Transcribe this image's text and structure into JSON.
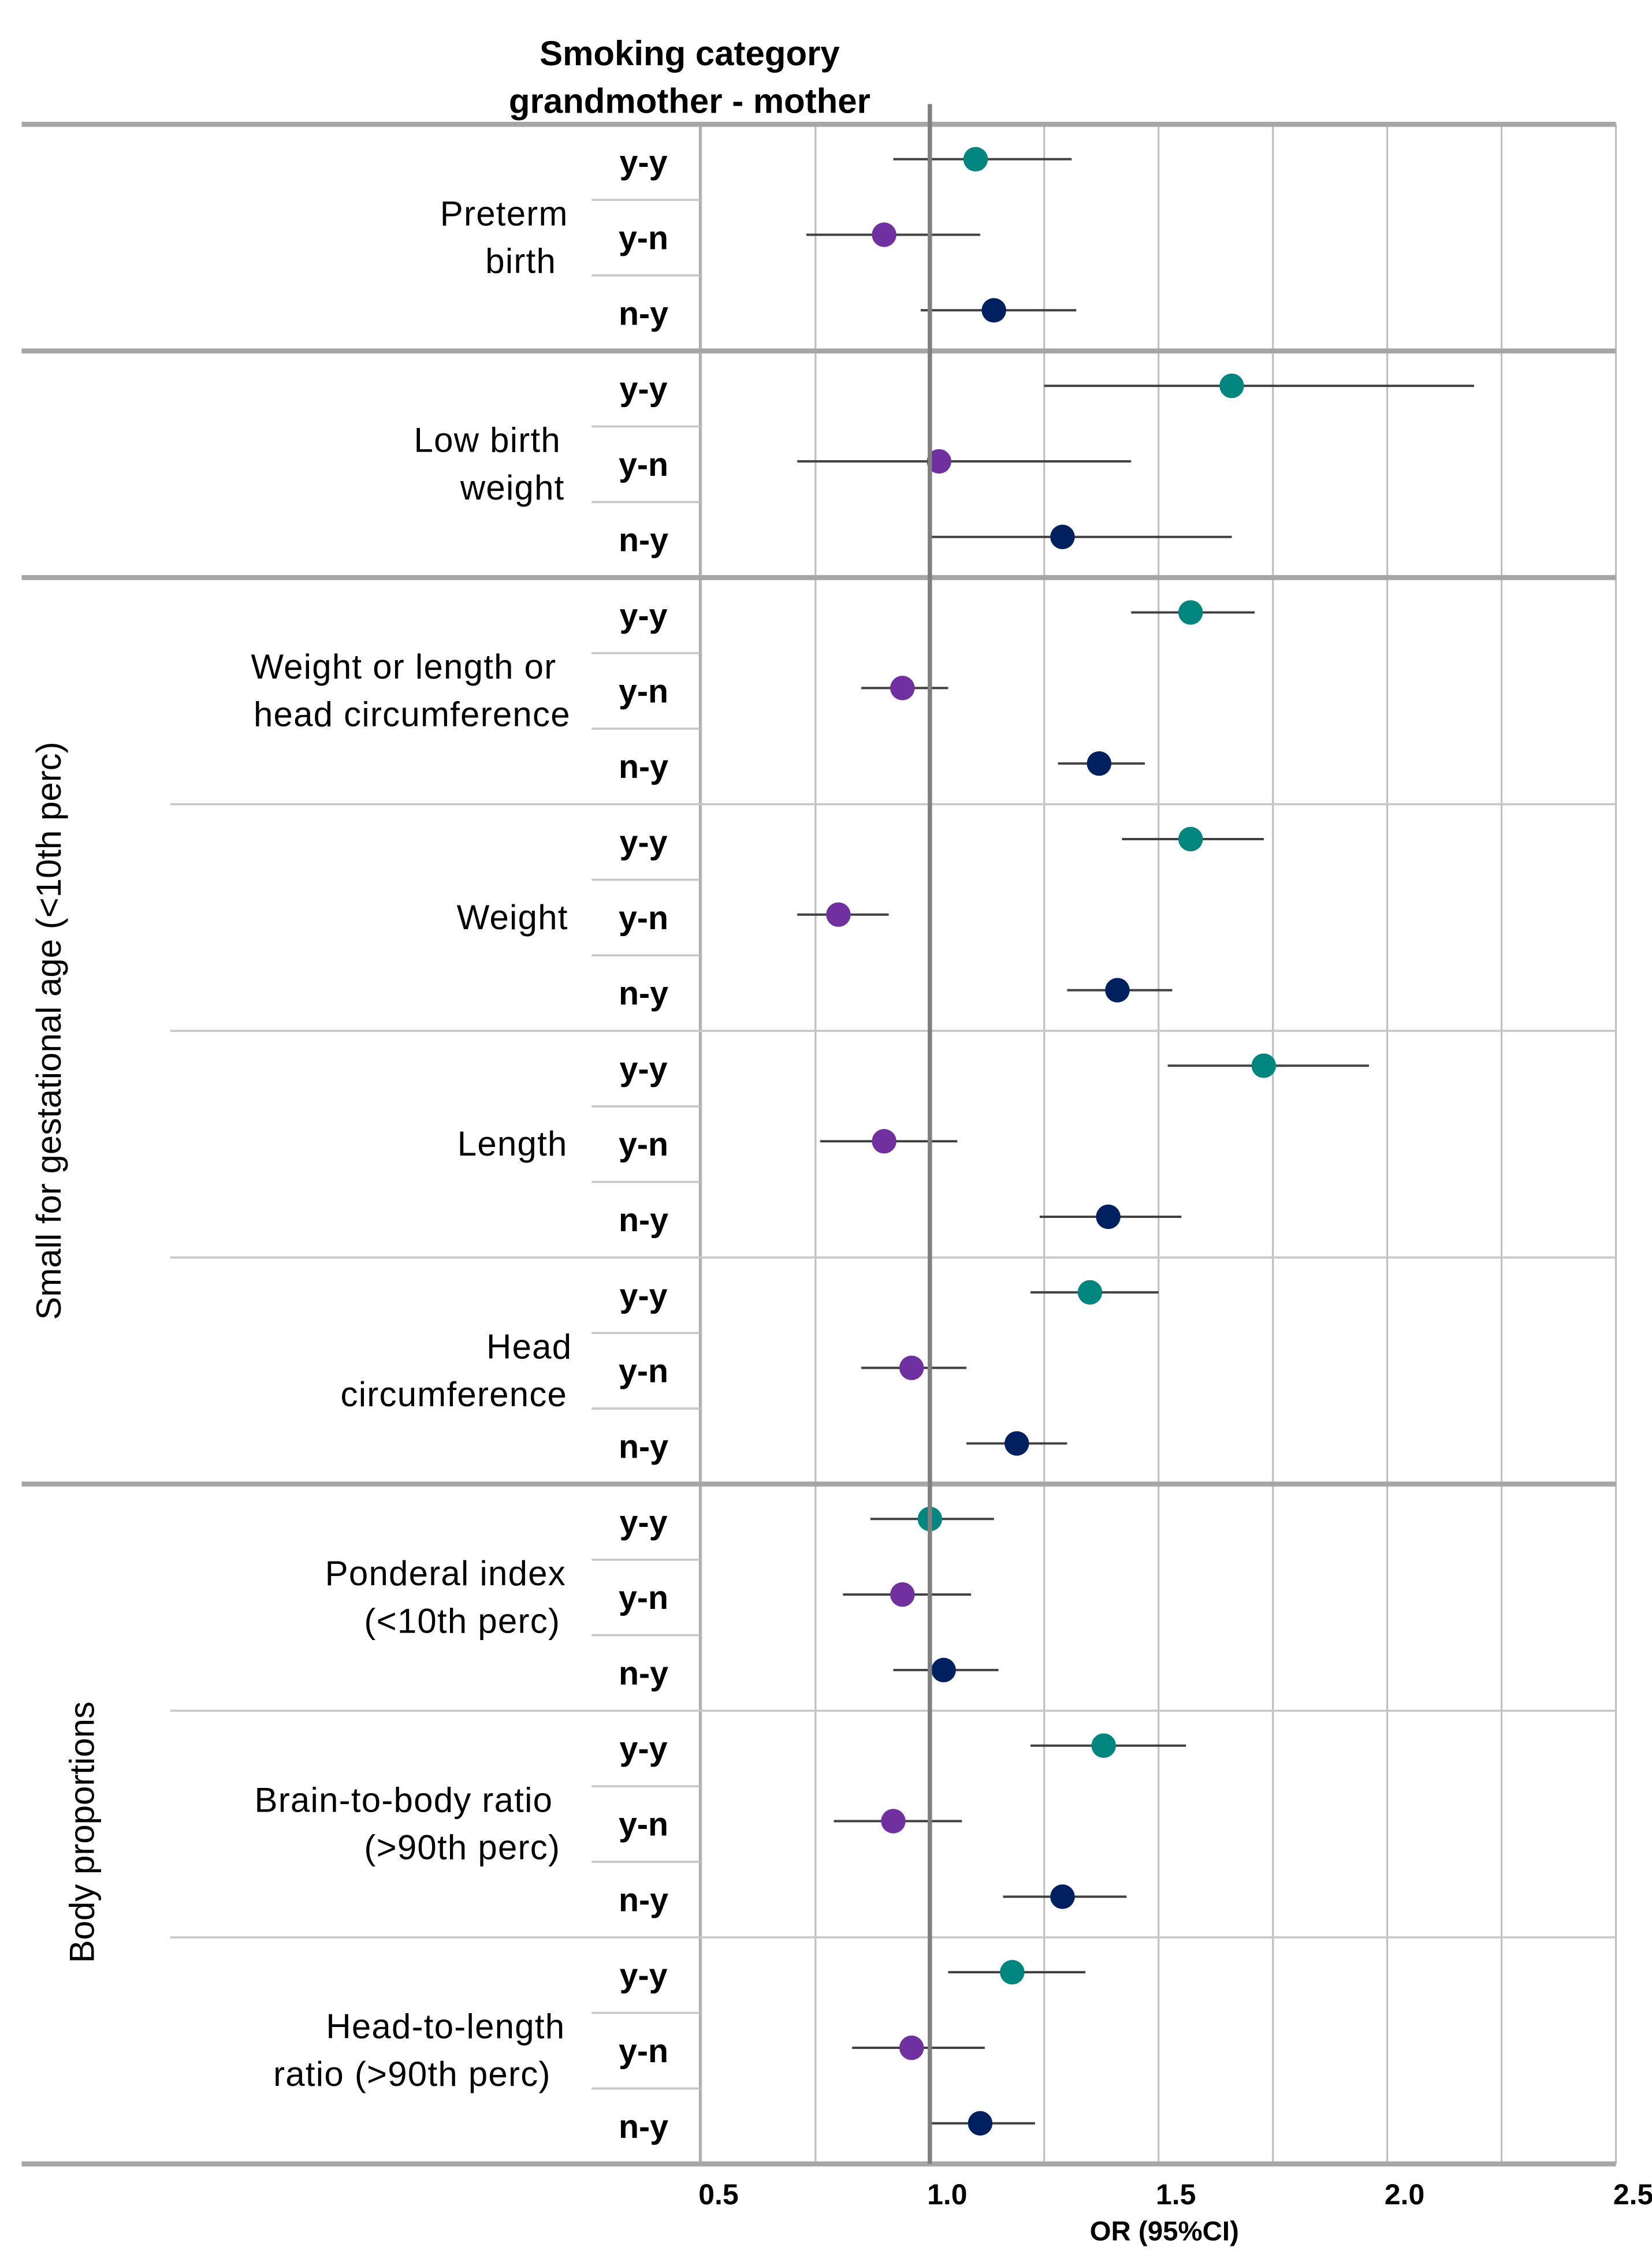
{
  "chart_data": {
    "type": "forest",
    "title": "Smoking category grandmother - mother",
    "title_lines": [
      "Smoking category",
      "grandmother - mother"
    ],
    "xlabel": "OR (95%CI)",
    "xlim": [
      0.5,
      2.5
    ],
    "xticks": [
      "0.5",
      "1.0",
      "1.5",
      "2.0",
      "2.5"
    ],
    "reference_line": 1.0,
    "grid": true,
    "categories": [
      "y-y",
      "y-n",
      "n-y"
    ],
    "colors": {
      "y-y": "#00857f",
      "y-n": "#7030a0",
      "n-y": "#002060"
    },
    "sections": [
      {
        "key": "sga",
        "label": "Small for gestational age (<10th perc)"
      },
      {
        "key": "body",
        "label": "Body proportions"
      }
    ],
    "outcomes": [
      {
        "label": [
          "Preterm",
          "birth"
        ],
        "section": null,
        "rows": [
          {
            "cat": "y-y",
            "or": 1.1,
            "lo": 0.92,
            "hi": 1.31
          },
          {
            "cat": "y-n",
            "or": 0.9,
            "lo": 0.73,
            "hi": 1.11
          },
          {
            "cat": "n-y",
            "or": 1.14,
            "lo": 0.98,
            "hi": 1.32
          }
        ]
      },
      {
        "label": [
          "Low birth",
          "weight"
        ],
        "section": null,
        "rows": [
          {
            "cat": "y-y",
            "or": 1.66,
            "lo": 1.25,
            "hi": 2.19
          },
          {
            "cat": "y-n",
            "or": 1.02,
            "lo": 0.71,
            "hi": 1.44
          },
          {
            "cat": "n-y",
            "or": 1.29,
            "lo": 1.0,
            "hi": 1.66
          }
        ]
      },
      {
        "label": [
          "Weight or length or",
          "head circumference"
        ],
        "section": "sga",
        "rows": [
          {
            "cat": "y-y",
            "or": 1.57,
            "lo": 1.44,
            "hi": 1.71
          },
          {
            "cat": "y-n",
            "or": 0.94,
            "lo": 0.85,
            "hi": 1.04
          },
          {
            "cat": "n-y",
            "or": 1.37,
            "lo": 1.28,
            "hi": 1.47
          }
        ]
      },
      {
        "label": [
          "Weight"
        ],
        "section": "sga",
        "rows": [
          {
            "cat": "y-y",
            "or": 1.57,
            "lo": 1.42,
            "hi": 1.73
          },
          {
            "cat": "y-n",
            "or": 0.8,
            "lo": 0.71,
            "hi": 0.91
          },
          {
            "cat": "n-y",
            "or": 1.41,
            "lo": 1.3,
            "hi": 1.53
          }
        ]
      },
      {
        "label": [
          "Length"
        ],
        "section": "sga",
        "rows": [
          {
            "cat": "y-y",
            "or": 1.73,
            "lo": 1.52,
            "hi": 1.96
          },
          {
            "cat": "y-n",
            "or": 0.9,
            "lo": 0.76,
            "hi": 1.06
          },
          {
            "cat": "n-y",
            "or": 1.39,
            "lo": 1.24,
            "hi": 1.55
          }
        ]
      },
      {
        "label": [
          "Head",
          "circumference"
        ],
        "section": "sga",
        "rows": [
          {
            "cat": "y-y",
            "or": 1.35,
            "lo": 1.22,
            "hi": 1.5
          },
          {
            "cat": "y-n",
            "or": 0.96,
            "lo": 0.85,
            "hi": 1.08
          },
          {
            "cat": "n-y",
            "or": 1.19,
            "lo": 1.08,
            "hi": 1.3
          }
        ]
      },
      {
        "label": [
          "Ponderal index",
          "(<10th perc)"
        ],
        "section": "body",
        "rows": [
          {
            "cat": "y-y",
            "or": 1.0,
            "lo": 0.87,
            "hi": 1.14
          },
          {
            "cat": "y-n",
            "or": 0.94,
            "lo": 0.81,
            "hi": 1.09
          },
          {
            "cat": "n-y",
            "or": 1.03,
            "lo": 0.92,
            "hi": 1.15
          }
        ]
      },
      {
        "label": [
          "Brain-to-body ratio",
          "(>90th perc)"
        ],
        "section": "body",
        "rows": [
          {
            "cat": "y-y",
            "or": 1.38,
            "lo": 1.22,
            "hi": 1.56
          },
          {
            "cat": "y-n",
            "or": 0.92,
            "lo": 0.79,
            "hi": 1.07
          },
          {
            "cat": "n-y",
            "or": 1.29,
            "lo": 1.16,
            "hi": 1.43
          }
        ]
      },
      {
        "label": [
          "Head-to-length",
          "ratio (>90th perc)"
        ],
        "section": "body",
        "rows": [
          {
            "cat": "y-y",
            "or": 1.18,
            "lo": 1.04,
            "hi": 1.34
          },
          {
            "cat": "y-n",
            "or": 0.96,
            "lo": 0.83,
            "hi": 1.12
          },
          {
            "cat": "n-y",
            "or": 1.11,
            "lo": 1.0,
            "hi": 1.23
          }
        ]
      }
    ]
  }
}
